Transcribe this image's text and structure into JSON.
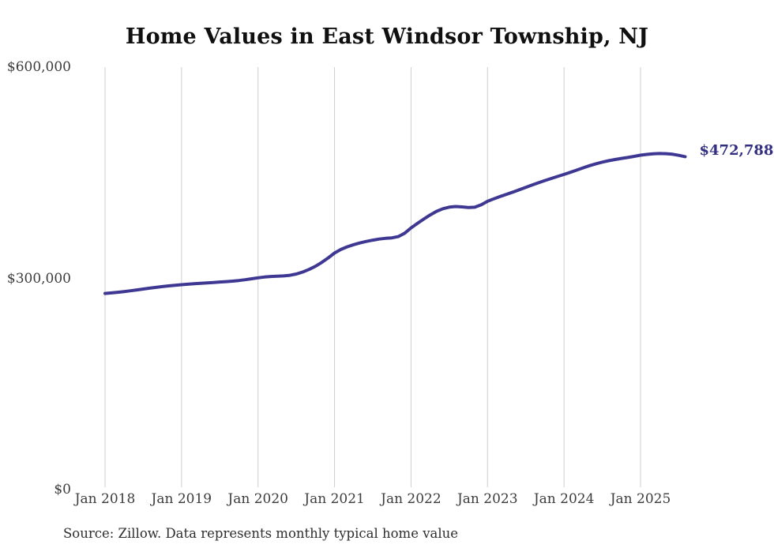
{
  "chart": {
    "title": "Home Values in East Windsor Township, NJ",
    "source": "Source: Zillow. Data represents monthly typical home value",
    "end_label": "$472,788"
  },
  "chart_data": {
    "type": "line",
    "title": "Home Values in East Windsor Township, NJ",
    "series_name": "Monthly typical home value",
    "frequency": "monthly",
    "x_start": "2018-01",
    "x_end": "2025-08",
    "xlabel": "",
    "ylabel": "",
    "ylim": [
      0,
      600000
    ],
    "grid": "vertical-only",
    "legend": "none",
    "line_color": "#3e3893",
    "grid_color": "#cfcfcf",
    "end_value": 472788,
    "values": [
      278600,
      279400,
      280300,
      281300,
      282400,
      283600,
      284900,
      286100,
      287200,
      288300,
      289300,
      290200,
      291000,
      291700,
      292400,
      293000,
      293600,
      294200,
      294800,
      295400,
      296100,
      297000,
      298100,
      299400,
      300800,
      301900,
      302700,
      303100,
      303500,
      304400,
      306200,
      309000,
      312700,
      317200,
      322600,
      329000,
      336000,
      341000,
      344900,
      347900,
      350400,
      352500,
      354300,
      355800,
      356900,
      357500,
      359300,
      364200,
      371700,
      378000,
      384200,
      390100,
      395200,
      398900,
      401200,
      402000,
      401500,
      400700,
      401000,
      404400,
      409500,
      413100,
      416300,
      419400,
      422600,
      425900,
      429300,
      432600,
      435800,
      438900,
      441900,
      444800,
      447600,
      450600,
      453800,
      457000,
      460000,
      462700,
      465100,
      467100,
      468800,
      470300,
      471700,
      473300,
      474900,
      476100,
      476900,
      477300,
      477100,
      476300,
      474700,
      472788
    ],
    "x_ticks": [
      {
        "label": "Jan 2018",
        "month_index": 0
      },
      {
        "label": "Jan 2019",
        "month_index": 12
      },
      {
        "label": "Jan 2020",
        "month_index": 24
      },
      {
        "label": "Jan 2021",
        "month_index": 36
      },
      {
        "label": "Jan 2022",
        "month_index": 48
      },
      {
        "label": "Jan 2023",
        "month_index": 60
      },
      {
        "label": "Jan 2024",
        "month_index": 72
      },
      {
        "label": "Jan 2025",
        "month_index": 84
      }
    ],
    "y_ticks": [
      {
        "label": "$0",
        "value": 0
      },
      {
        "label": "$300,000",
        "value": 300000
      },
      {
        "label": "$600,000",
        "value": 600000
      }
    ]
  }
}
